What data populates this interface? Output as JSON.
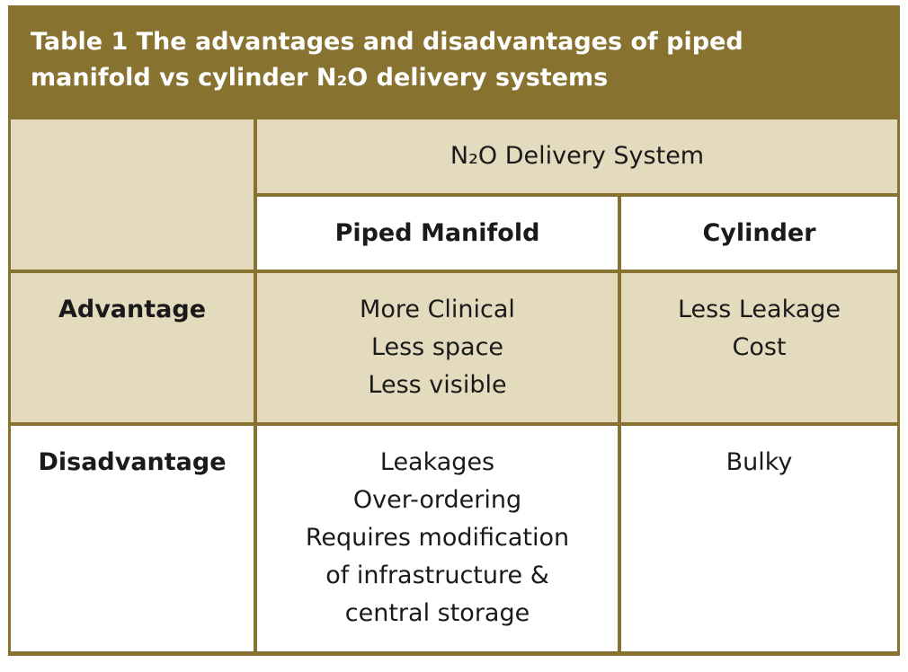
{
  "title": [
    "Table 1  The advantages and disadvantages of piped",
    "manifold vs cylinder N₂O delivery systems"
  ],
  "table": {
    "group_header": "N₂O Delivery System",
    "columns": [
      "Piped Manifold",
      "Cylinder"
    ],
    "rows": [
      {
        "label": "Advantage",
        "cells": [
          [
            "More Clinical",
            "Less space",
            "Less visible"
          ],
          [
            "Less Leakage",
            "Cost"
          ]
        ]
      },
      {
        "label": "Disadvantage",
        "cells": [
          [
            "Leakages",
            "Over-ordering",
            "Requires modification",
            "of infrastructure &",
            "central storage"
          ],
          [
            "Bulky"
          ]
        ]
      }
    ]
  }
}
